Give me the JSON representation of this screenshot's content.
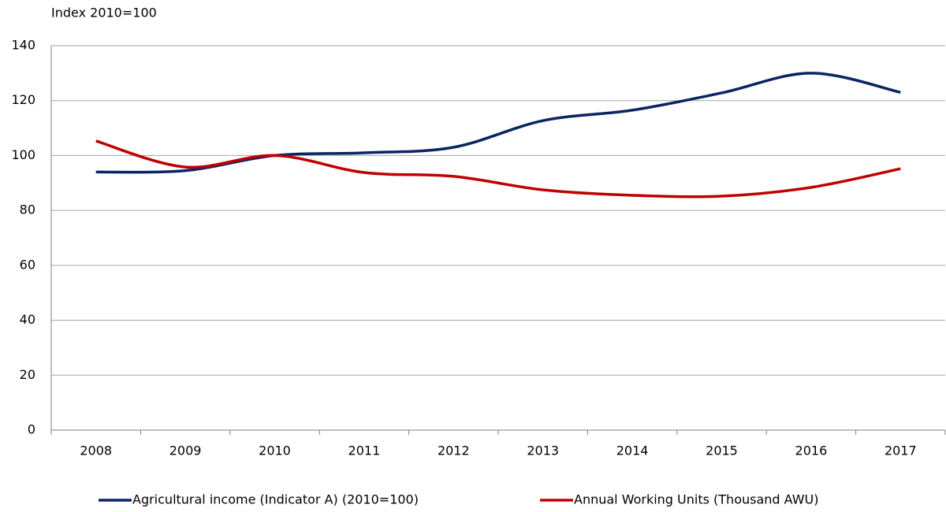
{
  "chart_data": {
    "type": "line",
    "y_axis_label": "Index 2010=100",
    "categories": [
      "2008",
      "2009",
      "2010",
      "2011",
      "2012",
      "2013",
      "2014",
      "2015",
      "2016",
      "2017"
    ],
    "series": [
      {
        "name": "Agricultural income (Indicator A) (2010=100)",
        "color": "#0b2464",
        "values": [
          94,
          94.5,
          100,
          101,
          103,
          112.7,
          116.5,
          122.8,
          130,
          123
        ]
      },
      {
        "name": "Annual Working Units (Thousand AWU)",
        "color": "#c00000",
        "values": [
          105.3,
          95.8,
          100,
          93.8,
          92.4,
          87.5,
          85.5,
          85.2,
          88.4,
          95.2
        ]
      }
    ],
    "ylim": [
      0,
      140
    ],
    "yticks": [
      0,
      20,
      40,
      60,
      80,
      100,
      120,
      140
    ],
    "grid": true,
    "smooth": true,
    "legend": "bottom"
  }
}
